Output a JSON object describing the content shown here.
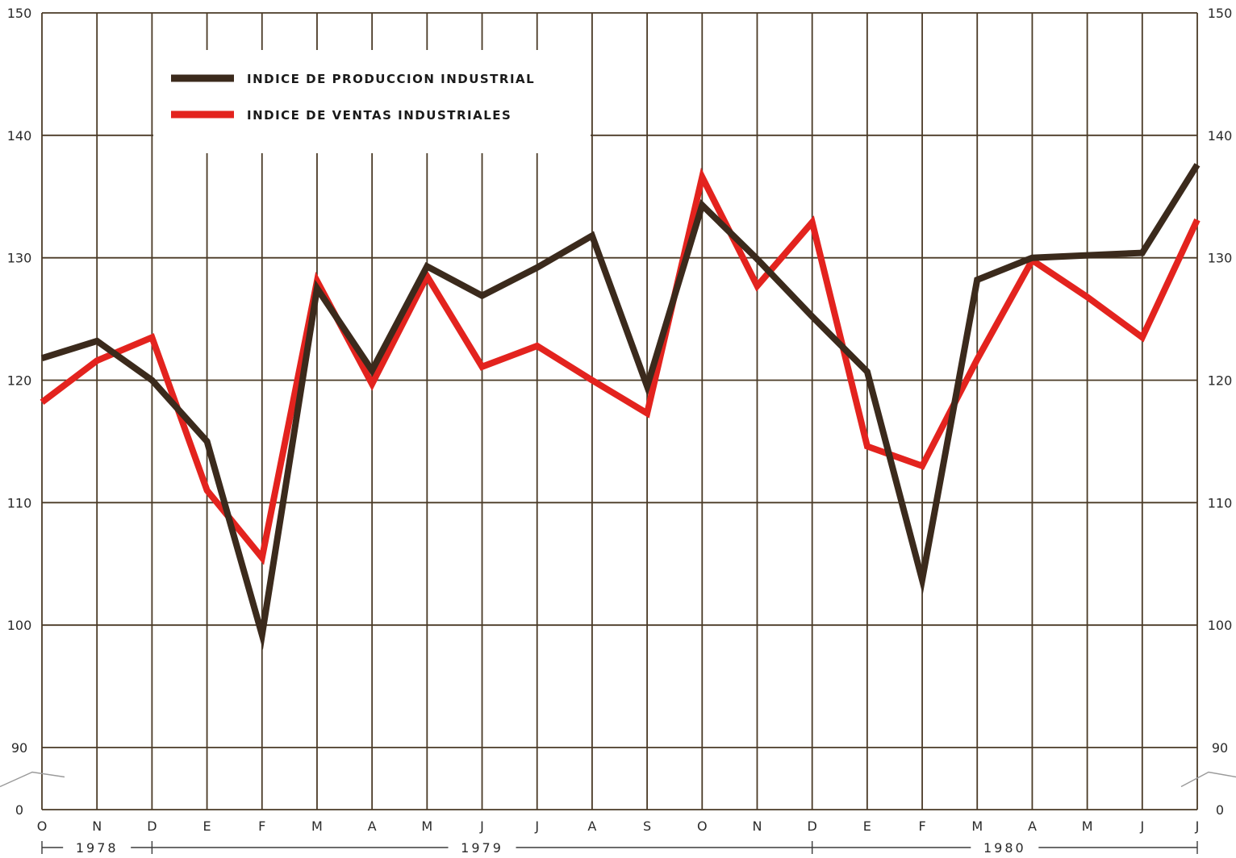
{
  "chart_data": {
    "type": "line",
    "title": "",
    "xlabel": "",
    "ylabel": "",
    "ylim": [
      85,
      150
    ],
    "axis_break": true,
    "y_ticks": [
      "150",
      "140",
      "130",
      "120",
      "110",
      "100",
      "90",
      "0"
    ],
    "y_ticks_right": [
      "150",
      "140",
      "130",
      "120",
      "110",
      "100",
      "90",
      "0"
    ],
    "categories": [
      "O",
      "N",
      "D",
      "E",
      "F",
      "M",
      "A",
      "M",
      "J",
      "J",
      "A",
      "S",
      "O",
      "N",
      "D",
      "E",
      "F",
      "M",
      "A",
      "M",
      "J",
      "J"
    ],
    "years": [
      {
        "label": "1978",
        "from": 0,
        "to": 2
      },
      {
        "label": "1979",
        "from": 2,
        "to": 14
      },
      {
        "label": "1980",
        "from": 14,
        "to": 21
      }
    ],
    "grid": true,
    "legend_position": "top-left",
    "series": [
      {
        "name": "INDICE DE PRODUCCION INDUSTRIAL",
        "color": "#3b2a1c",
        "values": [
          121.8,
          123.2,
          120.0,
          115.0,
          99.2,
          127.5,
          120.8,
          129.3,
          126.9,
          129.2,
          131.8,
          119.5,
          134.3,
          129.9,
          125.2,
          120.7,
          103.7,
          128.2,
          130.0,
          130.2,
          130.4,
          137.6
        ]
      },
      {
        "name": "INDICE DE VENTAS INDUSTRIALES",
        "color": "#e3231e",
        "values": [
          118.2,
          121.6,
          123.5,
          111.0,
          105.5,
          128.1,
          119.7,
          128.5,
          121.1,
          122.8,
          120.0,
          117.3,
          136.6,
          127.7,
          132.9,
          114.6,
          113.0,
          121.7,
          129.8,
          126.8,
          123.5,
          133.1
        ]
      }
    ]
  }
}
